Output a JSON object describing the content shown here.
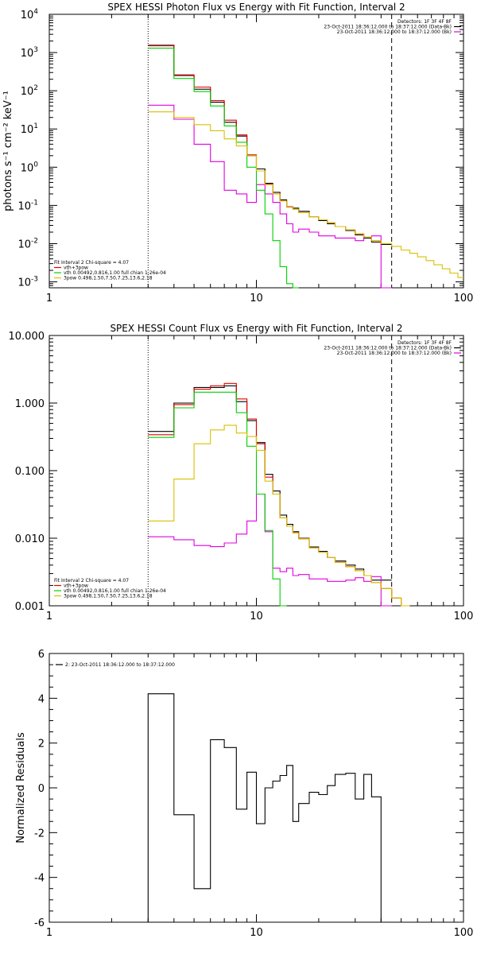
{
  "chart_data": [
    {
      "type": "line",
      "title": "SPEX HESSI Photon Flux vs Energy with Fit Function, Interval 2",
      "xlabel": "",
      "ylabel": "photons s⁻¹ cm⁻² keV⁻¹",
      "xscale": "log",
      "yscale": "log",
      "xlim": [
        1,
        100
      ],
      "ylim": [
        0.0007,
        10000
      ],
      "xticks": [
        "1",
        "10",
        "100"
      ],
      "yticks": [
        {
          "base": "10",
          "exp": "4",
          "value": 10000
        },
        {
          "base": "10",
          "exp": "3",
          "value": 1000
        },
        {
          "base": "10",
          "exp": "2",
          "value": 100
        },
        {
          "base": "10",
          "exp": "1",
          "value": 10
        },
        {
          "base": "10",
          "exp": "0",
          "value": 1
        },
        {
          "base": "10",
          "exp": "-1",
          "value": 0.1
        },
        {
          "base": "10",
          "exp": "-2",
          "value": 0.01
        },
        {
          "base": "10",
          "exp": "-3",
          "value": 0.001
        }
      ],
      "vlines": [
        {
          "x": 3.0,
          "style": "dotted"
        },
        {
          "x": 45.0,
          "style": "dashed"
        }
      ],
      "legend_top_right": [
        {
          "text": "Detectors: 1F 3F 4F 8F",
          "color": "",
          "marker": false
        },
        {
          "text": "23-Oct-2011 18:36:12.000 to 18:37:12.000 (Data-Bk)",
          "color": "#000000",
          "marker": true
        },
        {
          "text": "23-Oct-2011 18:36:12.000 to 18:37:12.000 (Bk)",
          "color": "#e000e0",
          "marker": true
        }
      ],
      "legend_bottom_left": [
        {
          "text": "Fit Interval  2    Chi-square = 4.07",
          "color": "",
          "marker": false
        },
        {
          "text": "vth+3pow",
          "color": "#e00000",
          "marker": true
        },
        {
          "text": "vth 0.00492,0.816,1.00  full chian 1.26e-04",
          "color": "#00d000",
          "marker": true
        },
        {
          "text": "3pow 0.498,1.50,7.50,7.25,13.6,2.18",
          "color": "#d8c000",
          "marker": true
        }
      ],
      "edges": [
        3.0,
        4.0,
        5.0,
        6.0,
        7.0,
        8.0,
        9.0,
        10.0,
        11.0,
        12.0,
        13.0,
        14.0,
        15.0,
        16.0,
        18.0,
        20.0,
        22.0,
        24.0,
        27.0,
        30.0,
        33.0,
        36.0,
        40.0,
        45.0,
        50.0,
        55.0,
        60.0,
        66.0,
        72.0,
        79.0,
        86.0,
        94.0,
        100.0
      ],
      "series": [
        {
          "color": "#000000",
          "values": [
            1550,
            250,
            110,
            50,
            15,
            6.5,
            2.0,
            0.9,
            0.38,
            0.22,
            0.14,
            0.095,
            0.085,
            0.07,
            0.05,
            0.04,
            0.033,
            0.028,
            0.022,
            0.017,
            0.014,
            0.011,
            0.0095
          ]
        },
        {
          "color": "#e000e0",
          "values": [
            42,
            18,
            4.0,
            1.4,
            0.25,
            0.2,
            0.12,
            0.35,
            0.2,
            0.12,
            0.06,
            0.033,
            0.02,
            0.024,
            0.02,
            0.016,
            0.016,
            0.014,
            0.014,
            0.012,
            0.015,
            0.016,
            0.0007
          ]
        },
        {
          "color": "#e00000",
          "values": [
            1500,
            260,
            125,
            55,
            17,
            7.0,
            2.1,
            0.8,
            0.36,
            0.2,
            0.13,
            0.092,
            0.08,
            0.065,
            0.05,
            0.042,
            0.035,
            0.028,
            0.023,
            0.018,
            0.015,
            0.012,
            0.01
          ]
        },
        {
          "color": "#00d000",
          "values": [
            1300,
            210,
            95,
            40,
            12,
            4.5,
            1.0,
            0.25,
            0.06,
            0.012,
            0.0025,
            0.0009,
            0.0007
          ]
        },
        {
          "color": "#d8c000",
          "values": [
            28,
            20,
            13,
            9.0,
            5.5,
            3.6,
            2.0,
            0.8,
            0.35,
            0.2,
            0.13,
            0.095,
            0.08,
            0.065,
            0.05,
            0.042,
            0.035,
            0.028,
            0.023,
            0.018,
            0.015,
            0.012,
            0.01,
            0.0085,
            0.0068,
            0.0056,
            0.0045,
            0.0036,
            0.0028,
            0.0022,
            0.0017,
            0.0013
          ]
        }
      ]
    },
    {
      "type": "line",
      "title": "SPEX HESSI Count Flux vs Energy with Fit Function, Interval 2",
      "xlabel": "",
      "ylabel": "",
      "xscale": "log",
      "yscale": "log",
      "xlim": [
        1,
        100
      ],
      "ylim": [
        0.001,
        10
      ],
      "xticks": [
        "1",
        "10",
        "100"
      ],
      "yticks": [
        {
          "base": "10.000",
          "exp": "",
          "value": 10
        },
        {
          "base": "1.000",
          "exp": "",
          "value": 1
        },
        {
          "base": "0.100",
          "exp": "",
          "value": 0.1
        },
        {
          "base": "0.010",
          "exp": "",
          "value": 0.01
        },
        {
          "base": "0.001",
          "exp": "",
          "value": 0.001
        }
      ],
      "vlines": [
        {
          "x": 3.0,
          "style": "dotted"
        },
        {
          "x": 45.0,
          "style": "dashed"
        }
      ],
      "legend_top_right": [
        {
          "text": "Detectors: 1F 3F 4F 8F",
          "color": "",
          "marker": false
        },
        {
          "text": "23-Oct-2011 18:36:12.000 to 18:37:12.000 (Data-Bk)",
          "color": "#000000",
          "marker": true
        },
        {
          "text": "23-Oct-2011 18:36:12.000 to 18:37:12.000 (Bk)",
          "color": "#e000e0",
          "marker": true
        }
      ],
      "legend_bottom_left": [
        {
          "text": "Fit Interval  2    Chi-square = 4.07",
          "color": "",
          "marker": false
        },
        {
          "text": "vth+3pow",
          "color": "#e00000",
          "marker": true
        },
        {
          "text": "vth 0.00492,0.816,1.00  full chian 1.26e-04",
          "color": "#00d000",
          "marker": true
        },
        {
          "text": "3pow 0.498,1.50,7.50,7.25,13.6,2.18",
          "color": "#d8c000",
          "marker": true
        }
      ],
      "edges": [
        3.0,
        4.0,
        5.0,
        6.0,
        7.0,
        8.0,
        9.0,
        10.0,
        11.0,
        12.0,
        13.0,
        14.0,
        15.0,
        16.0,
        18.0,
        20.0,
        22.0,
        24.0,
        27.0,
        30.0,
        33.0,
        36.0,
        40.0,
        45.0,
        50.0,
        55.0
      ],
      "series": [
        {
          "color": "#000000",
          "values": [
            0.38,
            1.0,
            1.7,
            1.7,
            1.8,
            1.05,
            0.55,
            0.26,
            0.088,
            0.05,
            0.022,
            0.016,
            0.0125,
            0.01,
            0.0074,
            0.0064,
            0.0052,
            0.0046,
            0.004,
            0.0035,
            0.0028,
            0.0024,
            0.0024
          ]
        },
        {
          "color": "#e000e0",
          "values": [
            0.0105,
            0.0095,
            0.0078,
            0.0075,
            0.0085,
            0.0115,
            0.018,
            0.045,
            0.0125,
            0.0036,
            0.0032,
            0.0036,
            0.0028,
            0.0029,
            0.0025,
            0.0025,
            0.0023,
            0.0023,
            0.0024,
            0.0026,
            0.0023,
            0.0027,
            0.0005
          ]
        },
        {
          "color": "#e00000",
          "values": [
            0.34,
            0.95,
            1.6,
            1.8,
            1.95,
            1.15,
            0.58,
            0.25,
            0.08,
            0.045,
            0.02,
            0.015,
            0.012,
            0.0098,
            0.0072,
            0.0062,
            0.0052,
            0.0044,
            0.0038,
            0.0033,
            0.0028,
            0.0022,
            0.0018,
            0.0013,
            0.0009
          ]
        },
        {
          "color": "#00d000",
          "values": [
            0.31,
            0.85,
            1.45,
            1.45,
            1.45,
            0.72,
            0.23,
            0.045,
            0.013,
            0.0025,
            0.0006
          ]
        },
        {
          "color": "#d8c000",
          "values": [
            0.018,
            0.075,
            0.25,
            0.4,
            0.47,
            0.36,
            0.32,
            0.2,
            0.07,
            0.045,
            0.02,
            0.015,
            0.012,
            0.0098,
            0.0072,
            0.0062,
            0.0052,
            0.0044,
            0.0038,
            0.0033,
            0.0028,
            0.0022,
            0.0018,
            0.0013,
            0.0009
          ]
        }
      ]
    },
    {
      "type": "line",
      "title": "",
      "xlabel": "",
      "ylabel": "Normalized Residuals",
      "xscale": "log",
      "yscale": "linear",
      "xlim": [
        1,
        100
      ],
      "ylim": [
        -6,
        6
      ],
      "xticks": [
        "1",
        "10",
        "100"
      ],
      "yticks": [
        {
          "base": "6",
          "exp": "",
          "value": 6
        },
        {
          "base": "4",
          "exp": "",
          "value": 4
        },
        {
          "base": "2",
          "exp": "",
          "value": 2
        },
        {
          "base": "0",
          "exp": "",
          "value": 0
        },
        {
          "base": "-2",
          "exp": "",
          "value": -2
        },
        {
          "base": "-4",
          "exp": "",
          "value": -4
        },
        {
          "base": "-6",
          "exp": "",
          "value": -6
        }
      ],
      "vlines": [],
      "legend_top_right": [],
      "legend_bottom_left": [],
      "legend_top_left": [
        {
          "text": "2: 23-Oct-2011 18:36:12.000 to 18:37:12.000",
          "color": "#000000",
          "marker": true
        }
      ],
      "edges": [
        3.0,
        4.0,
        5.0,
        6.0,
        7.0,
        8.0,
        9.0,
        10.0,
        11.0,
        12.0,
        13.0,
        14.0,
        15.0,
        16.0,
        18.0,
        20.0,
        22.0,
        24.0,
        27.0,
        30.0,
        33.0,
        36.0,
        40.0,
        45.0
      ],
      "series": [
        {
          "color": "#000000",
          "drop_to_axis": true,
          "values": [
            4.2,
            -1.2,
            -4.5,
            2.15,
            1.8,
            -0.95,
            0.7,
            -1.6,
            0.0,
            0.3,
            0.55,
            1.0,
            -1.5,
            -0.7,
            -0.2,
            -0.3,
            0.1,
            0.6,
            0.65,
            -0.5,
            0.6,
            -0.4,
            -6.0
          ]
        }
      ]
    }
  ]
}
